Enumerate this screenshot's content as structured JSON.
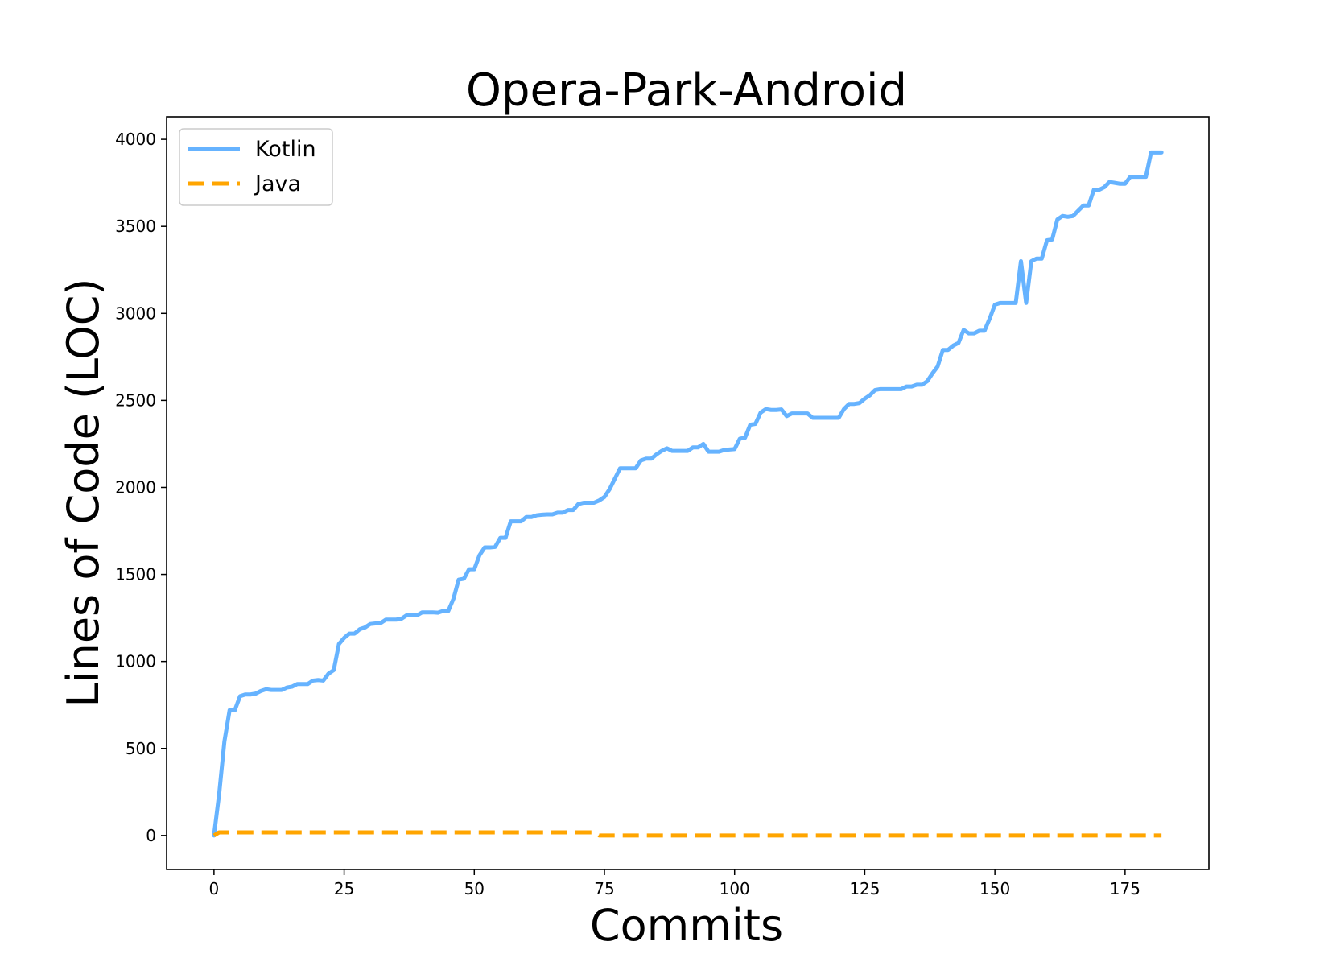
{
  "chart_data": {
    "type": "line",
    "title": "Opera-Park-Android",
    "xlabel": "Commits",
    "ylabel": "Lines of Code (LOC)",
    "xlim": [
      -9.1,
      191.1
    ],
    "ylim": [
      -195,
      4130
    ],
    "xticks": [
      0,
      25,
      50,
      75,
      100,
      125,
      150,
      175
    ],
    "yticks": [
      0,
      500,
      1000,
      1500,
      2000,
      2500,
      3000,
      3500,
      4000
    ],
    "grid": false,
    "legend_position": "top-left",
    "colors": {
      "kotlin": "#66b3ff",
      "java": "#ffa500"
    },
    "series": [
      {
        "name": "Kotlin",
        "style": "solid",
        "points": [
          [
            0,
            0
          ],
          [
            1,
            240
          ],
          [
            2,
            540
          ],
          [
            3,
            720
          ],
          [
            4,
            720
          ],
          [
            5,
            800
          ],
          [
            6,
            810
          ],
          [
            7,
            810
          ],
          [
            8,
            815
          ],
          [
            9,
            830
          ],
          [
            10,
            840
          ],
          [
            11,
            836
          ],
          [
            12,
            836
          ],
          [
            13,
            836
          ],
          [
            14,
            850
          ],
          [
            15,
            855
          ],
          [
            16,
            870
          ],
          [
            17,
            870
          ],
          [
            18,
            870
          ],
          [
            19,
            890
          ],
          [
            20,
            893
          ],
          [
            21,
            890
          ],
          [
            22,
            930
          ],
          [
            23,
            950
          ],
          [
            24,
            1100
          ],
          [
            25,
            1135
          ],
          [
            26,
            1160
          ],
          [
            27,
            1160
          ],
          [
            28,
            1185
          ],
          [
            29,
            1195
          ],
          [
            30,
            1215
          ],
          [
            31,
            1218
          ],
          [
            32,
            1220
          ],
          [
            33,
            1240
          ],
          [
            34,
            1240
          ],
          [
            35,
            1240
          ],
          [
            36,
            1245
          ],
          [
            37,
            1265
          ],
          [
            38,
            1265
          ],
          [
            39,
            1265
          ],
          [
            40,
            1282
          ],
          [
            41,
            1282
          ],
          [
            42,
            1282
          ],
          [
            43,
            1280
          ],
          [
            44,
            1290
          ],
          [
            45,
            1290
          ],
          [
            46,
            1360
          ],
          [
            47,
            1470
          ],
          [
            48,
            1475
          ],
          [
            49,
            1530
          ],
          [
            50,
            1530
          ],
          [
            51,
            1610
          ],
          [
            52,
            1655
          ],
          [
            53,
            1655
          ],
          [
            54,
            1658
          ],
          [
            55,
            1710
          ],
          [
            56,
            1710
          ],
          [
            57,
            1805
          ],
          [
            58,
            1805
          ],
          [
            59,
            1805
          ],
          [
            60,
            1830
          ],
          [
            61,
            1830
          ],
          [
            62,
            1840
          ],
          [
            63,
            1843
          ],
          [
            64,
            1845
          ],
          [
            65,
            1845
          ],
          [
            66,
            1855
          ],
          [
            67,
            1855
          ],
          [
            68,
            1870
          ],
          [
            69,
            1870
          ],
          [
            70,
            1905
          ],
          [
            71,
            1912
          ],
          [
            72,
            1912
          ],
          [
            73,
            1912
          ],
          [
            74,
            1925
          ],
          [
            75,
            1945
          ],
          [
            76,
            1990
          ],
          [
            77,
            2050
          ],
          [
            78,
            2110
          ],
          [
            79,
            2110
          ],
          [
            80,
            2110
          ],
          [
            81,
            2110
          ],
          [
            82,
            2155
          ],
          [
            83,
            2165
          ],
          [
            84,
            2165
          ],
          [
            85,
            2190
          ],
          [
            86,
            2210
          ],
          [
            87,
            2225
          ],
          [
            88,
            2210
          ],
          [
            89,
            2210
          ],
          [
            90,
            2210
          ],
          [
            91,
            2210
          ],
          [
            92,
            2230
          ],
          [
            93,
            2230
          ],
          [
            94,
            2250
          ],
          [
            95,
            2205
          ],
          [
            96,
            2205
          ],
          [
            97,
            2205
          ],
          [
            98,
            2215
          ],
          [
            99,
            2218
          ],
          [
            100,
            2220
          ],
          [
            101,
            2280
          ],
          [
            102,
            2285
          ],
          [
            103,
            2360
          ],
          [
            104,
            2365
          ],
          [
            105,
            2430
          ],
          [
            106,
            2450
          ],
          [
            107,
            2445
          ],
          [
            108,
            2445
          ],
          [
            109,
            2448
          ],
          [
            110,
            2410
          ],
          [
            111,
            2425
          ],
          [
            112,
            2425
          ],
          [
            113,
            2425
          ],
          [
            114,
            2425
          ],
          [
            115,
            2400
          ],
          [
            116,
            2400
          ],
          [
            117,
            2400
          ],
          [
            118,
            2400
          ],
          [
            119,
            2400
          ],
          [
            120,
            2400
          ],
          [
            121,
            2450
          ],
          [
            122,
            2480
          ],
          [
            123,
            2480
          ],
          [
            124,
            2485
          ],
          [
            125,
            2510
          ],
          [
            126,
            2530
          ],
          [
            127,
            2560
          ],
          [
            128,
            2565
          ],
          [
            129,
            2565
          ],
          [
            130,
            2565
          ],
          [
            131,
            2565
          ],
          [
            132,
            2565
          ],
          [
            133,
            2580
          ],
          [
            134,
            2580
          ],
          [
            135,
            2590
          ],
          [
            136,
            2590
          ],
          [
            137,
            2610
          ],
          [
            138,
            2655
          ],
          [
            139,
            2695
          ],
          [
            140,
            2790
          ],
          [
            141,
            2790
          ],
          [
            142,
            2815
          ],
          [
            143,
            2830
          ],
          [
            144,
            2905
          ],
          [
            145,
            2885
          ],
          [
            146,
            2885
          ],
          [
            147,
            2900
          ],
          [
            148,
            2900
          ],
          [
            149,
            2970
          ],
          [
            150,
            3050
          ],
          [
            151,
            3060
          ],
          [
            152,
            3060
          ],
          [
            153,
            3060
          ],
          [
            154,
            3060
          ],
          [
            155,
            3300
          ],
          [
            156,
            3060
          ],
          [
            157,
            3300
          ],
          [
            158,
            3315
          ],
          [
            159,
            3315
          ],
          [
            160,
            3420
          ],
          [
            161,
            3425
          ],
          [
            162,
            3540
          ],
          [
            163,
            3560
          ],
          [
            164,
            3555
          ],
          [
            165,
            3560
          ],
          [
            166,
            3590
          ],
          [
            167,
            3620
          ],
          [
            168,
            3620
          ],
          [
            169,
            3710
          ],
          [
            170,
            3710
          ],
          [
            171,
            3725
          ],
          [
            172,
            3755
          ],
          [
            173,
            3750
          ],
          [
            174,
            3745
          ],
          [
            175,
            3745
          ],
          [
            176,
            3785
          ],
          [
            177,
            3785
          ],
          [
            178,
            3785
          ],
          [
            179,
            3785
          ],
          [
            180,
            3925
          ],
          [
            181,
            3925
          ],
          [
            182,
            3925
          ]
        ]
      },
      {
        "name": "Java",
        "style": "dashed",
        "points": [
          [
            0,
            0
          ],
          [
            1,
            18
          ],
          [
            2,
            18
          ],
          [
            72,
            18
          ],
          [
            73,
            18
          ],
          [
            74,
            0
          ],
          [
            182,
            0
          ]
        ]
      }
    ]
  }
}
